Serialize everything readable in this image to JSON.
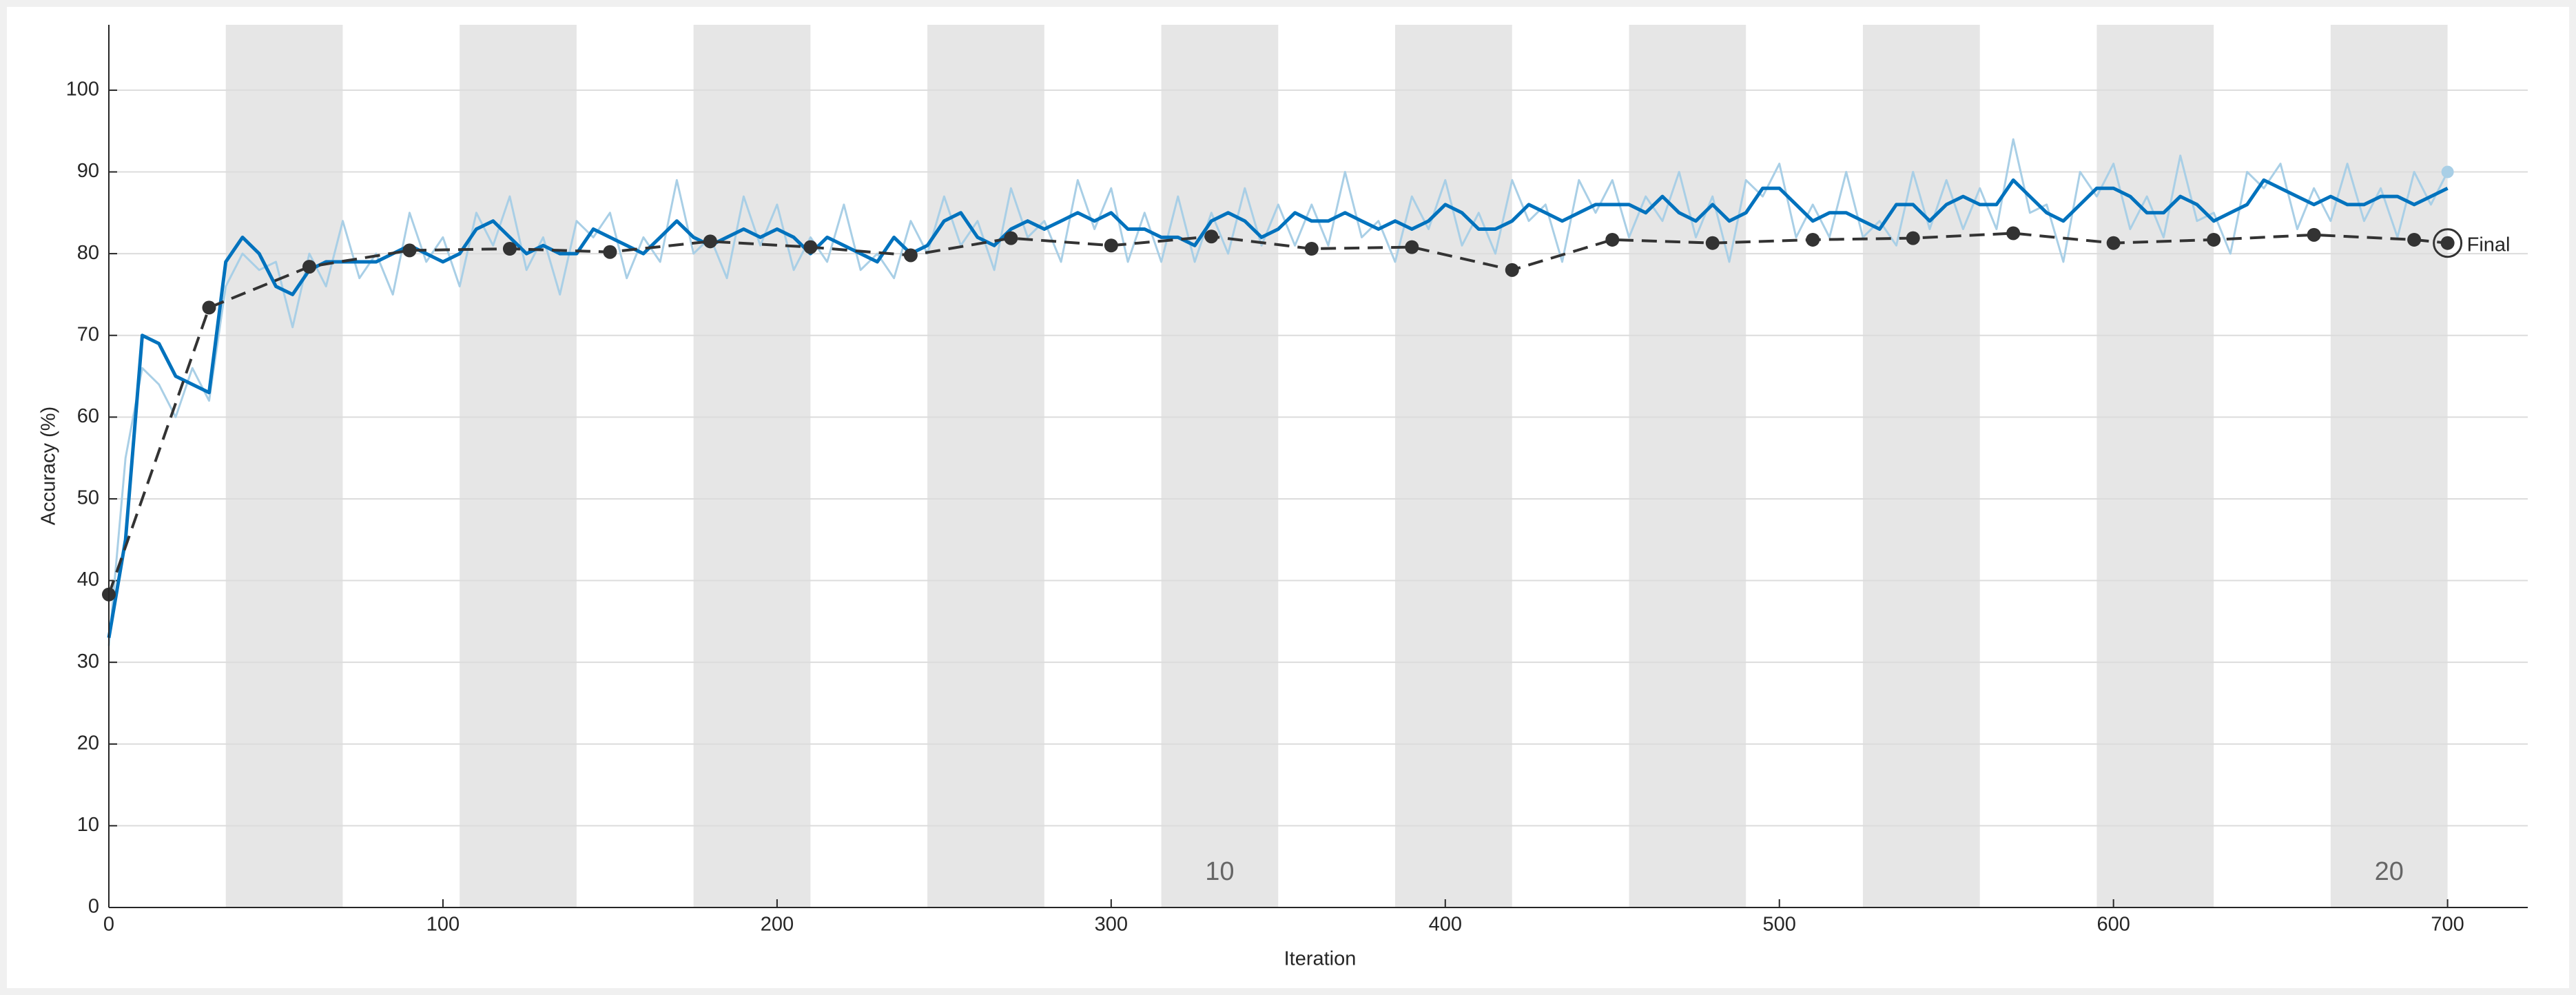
{
  "chart_data": {
    "type": "line",
    "xlabel": "Iteration",
    "ylabel": "Accuracy (%)",
    "xlim": [
      0,
      724
    ],
    "ylim": [
      0,
      108
    ],
    "xticks": [
      0,
      100,
      200,
      300,
      400,
      500,
      600,
      700
    ],
    "yticks": [
      0,
      10,
      20,
      30,
      40,
      50,
      60,
      70,
      80,
      90,
      100
    ],
    "grid": true,
    "epoch_bands": [
      [
        35,
        70
      ],
      [
        105,
        140
      ],
      [
        175,
        210
      ],
      [
        245,
        280
      ],
      [
        315,
        350
      ],
      [
        385,
        420
      ],
      [
        455,
        490
      ],
      [
        525,
        560
      ],
      [
        595,
        630
      ],
      [
        665,
        700
      ]
    ],
    "band_color": "#e6e6e6",
    "epoch_labels": [
      {
        "label": "10",
        "x": 332.5
      },
      {
        "label": "20",
        "x": 682.5
      }
    ],
    "x": [
      0,
      5,
      10,
      15,
      20,
      25,
      30,
      35,
      40,
      45,
      50,
      55,
      60,
      65,
      70,
      75,
      80,
      85,
      90,
      95,
      100,
      105,
      110,
      115,
      120,
      125,
      130,
      135,
      140,
      145,
      150,
      155,
      160,
      165,
      170,
      175,
      180,
      185,
      190,
      195,
      200,
      205,
      210,
      215,
      220,
      225,
      230,
      235,
      240,
      245,
      250,
      255,
      260,
      265,
      270,
      275,
      280,
      285,
      290,
      295,
      300,
      305,
      310,
      315,
      320,
      325,
      330,
      335,
      340,
      345,
      350,
      355,
      360,
      365,
      370,
      375,
      380,
      385,
      390,
      395,
      400,
      405,
      410,
      415,
      420,
      425,
      430,
      435,
      440,
      445,
      450,
      455,
      460,
      465,
      470,
      475,
      480,
      485,
      490,
      495,
      500,
      505,
      510,
      515,
      520,
      525,
      530,
      535,
      540,
      545,
      550,
      555,
      560,
      565,
      570,
      575,
      580,
      585,
      590,
      595,
      600,
      605,
      610,
      615,
      620,
      625,
      630,
      635,
      640,
      645,
      650,
      655,
      660,
      665,
      670,
      675,
      680,
      685,
      690,
      695,
      700
    ],
    "series": [
      {
        "color": "#a9cfe6",
        "width": 3,
        "end_marker": true,
        "values": [
          32,
          55,
          66,
          64,
          60,
          66,
          62,
          76,
          80,
          78,
          79,
          71,
          80,
          76,
          84,
          77,
          80,
          75,
          85,
          79,
          82,
          76,
          85,
          81,
          87,
          78,
          82,
          75,
          84,
          82,
          85,
          77,
          82,
          79,
          89,
          80,
          82,
          77,
          87,
          81,
          86,
          78,
          82,
          79,
          86,
          78,
          80,
          77,
          84,
          80,
          87,
          81,
          84,
          78,
          88,
          82,
          84,
          79,
          89,
          83,
          88,
          79,
          85,
          79,
          87,
          79,
          85,
          80,
          88,
          81,
          86,
          81,
          86,
          81,
          90,
          82,
          84,
          79,
          87,
          83,
          89,
          81,
          85,
          80,
          89,
          84,
          86,
          79,
          89,
          85,
          89,
          82,
          87,
          84,
          90,
          82,
          87,
          79,
          89,
          87,
          91,
          82,
          86,
          82,
          90,
          82,
          84,
          81,
          90,
          83,
          89,
          83,
          88,
          83,
          94,
          85,
          86,
          79,
          90,
          87,
          91,
          83,
          87,
          82,
          92,
          84,
          85,
          80,
          90,
          88,
          91,
          83,
          88,
          84,
          91,
          84,
          88,
          82,
          90,
          86,
          90
        ]
      },
      {
        "color": "#0072bd",
        "width": 5,
        "values": [
          33,
          45,
          70,
          69,
          65,
          64,
          63,
          79,
          82,
          80,
          76,
          75,
          78,
          79,
          79,
          79,
          79,
          80,
          81,
          80,
          79,
          80,
          83,
          84,
          82,
          80,
          81,
          80,
          80,
          83,
          82,
          81,
          80,
          82,
          84,
          82,
          81,
          82,
          83,
          82,
          83,
          82,
          80,
          82,
          81,
          80,
          79,
          82,
          80,
          81,
          84,
          85,
          82,
          81,
          83,
          84,
          83,
          84,
          85,
          84,
          85,
          83,
          83,
          82,
          82,
          81,
          84,
          85,
          84,
          82,
          83,
          85,
          84,
          84,
          85,
          84,
          83,
          84,
          83,
          84,
          86,
          85,
          83,
          83,
          84,
          86,
          85,
          84,
          85,
          86,
          86,
          86,
          85,
          87,
          85,
          84,
          86,
          84,
          85,
          88,
          88,
          86,
          84,
          85,
          85,
          84,
          83,
          86,
          86,
          84,
          86,
          87,
          86,
          86,
          89,
          87,
          85,
          84,
          86,
          88,
          88,
          87,
          85,
          85,
          87,
          86,
          84,
          85,
          86,
          89,
          88,
          87,
          86,
          87,
          86,
          86,
          87,
          87,
          86,
          87,
          88
        ]
      },
      {
        "color": "#333333",
        "width": 4,
        "dashed": true,
        "markers": true,
        "x": [
          0,
          30,
          60,
          90,
          120,
          150,
          180,
          210,
          240,
          270,
          300,
          330,
          360,
          390,
          420,
          450,
          480,
          510,
          540,
          570,
          600,
          630,
          660,
          690,
          700
        ],
        "values": [
          38.3,
          73.4,
          78.4,
          80.4,
          80.6,
          80.2,
          81.5,
          80.8,
          79.8,
          81.9,
          81.0,
          82.1,
          80.6,
          80.8,
          78.0,
          81.7,
          81.3,
          81.7,
          81.9,
          82.5,
          81.3,
          81.7,
          82.3,
          81.7,
          81.3
        ]
      }
    ],
    "annotations": [
      {
        "text": "Final",
        "x": 700,
        "y": 81.3
      }
    ]
  }
}
